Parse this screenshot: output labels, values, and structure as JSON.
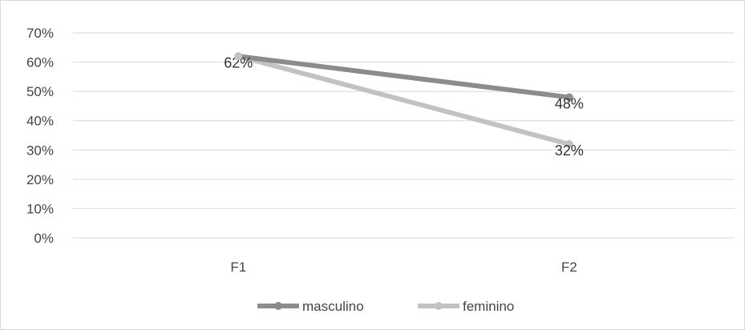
{
  "chart_data": {
    "type": "line",
    "title": "",
    "xlabel": "",
    "ylabel": "",
    "categories": [
      "F1",
      "F2"
    ],
    "ylim": [
      0,
      70
    ],
    "y_ticks": [
      "0%",
      "10%",
      "20%",
      "30%",
      "40%",
      "50%",
      "60%",
      "70%"
    ],
    "grid": true,
    "legend_position": "bottom",
    "series": [
      {
        "name": "masculino",
        "values": [
          62,
          48
        ],
        "labels": [
          "62%",
          "48%"
        ],
        "color": "#8c8c8c"
      },
      {
        "name": "feminino",
        "values": [
          62,
          32
        ],
        "labels": [
          "",
          "32%"
        ],
        "color": "#c2c2c2"
      }
    ]
  }
}
